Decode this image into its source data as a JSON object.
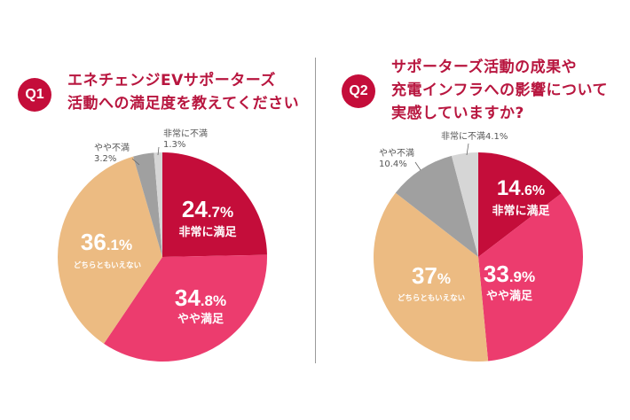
{
  "chart_data": [
    {
      "type": "pie",
      "badge": "Q1",
      "title_lines": [
        "エネチェンジEVサポーターズ",
        "活動への満足度を教えてください"
      ],
      "slices": [
        {
          "label": "非常に満足",
          "value": 24.7,
          "value_text": "24.7%",
          "int_part": "24",
          "dec_part": ".7%",
          "color": "#c40d3a"
        },
        {
          "label": "やや満足",
          "value": 34.8,
          "value_text": "34.8%",
          "int_part": "34",
          "dec_part": ".8%",
          "color": "#ec3c6e"
        },
        {
          "label": "どちらともいえない",
          "value": 36.1,
          "value_text": "36.1%",
          "int_part": "36",
          "dec_part": ".1%",
          "color": "#ecbb82"
        },
        {
          "label": "やや不満",
          "value": 3.2,
          "value_text": "3.2%",
          "color": "#a0a0a0"
        },
        {
          "label": "非常に不満",
          "value": 1.3,
          "value_text": "1.3%",
          "color": "#d6d6d6"
        }
      ]
    },
    {
      "type": "pie",
      "badge": "Q2",
      "title_lines": [
        "サポーターズ活動の成果や",
        "充電インフラへの影響について",
        "実感していますか?"
      ],
      "slices": [
        {
          "label": "非常に満足",
          "value": 14.6,
          "value_text": "14.6%",
          "int_part": "14",
          "dec_part": ".6%",
          "color": "#c40d3a"
        },
        {
          "label": "やや満足",
          "value": 33.9,
          "value_text": "33.9%",
          "int_part": "33",
          "dec_part": ".9%",
          "color": "#ec3c6e"
        },
        {
          "label": "どちらともいえない",
          "value": 37,
          "value_text": "37%",
          "int_part": "37",
          "dec_part": "%",
          "color": "#ecbb82"
        },
        {
          "label": "やや不満",
          "value": 10.4,
          "value_text": "10.4%",
          "color": "#a0a0a0"
        },
        {
          "label": "非常に不満",
          "value": 4.1,
          "value_text": "4.1%",
          "color": "#d6d6d6"
        }
      ]
    }
  ],
  "colors": {
    "accent": "#c40d3a",
    "title": "#b8163f",
    "divider": "#9a9a9a"
  }
}
